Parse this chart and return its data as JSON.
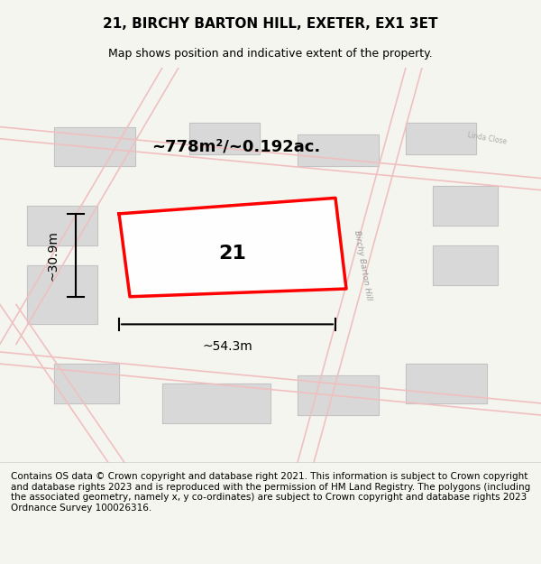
{
  "title": "21, BIRCHY BARTON HILL, EXETER, EX1 3ET",
  "subtitle": "Map shows position and indicative extent of the property.",
  "area_label": "~778m²/~0.192ac.",
  "width_label": "~54.3m",
  "height_label": "~30.9m",
  "property_number": "21",
  "footer": "Contains OS data © Crown copyright and database right 2021. This information is subject to Crown copyright and database rights 2023 and is reproduced with the permission of HM Land Registry. The polygons (including the associated geometry, namely x, y co-ordinates) are subject to Crown copyright and database rights 2023 Ordnance Survey 100026316.",
  "bg_color": "#f5f5f0",
  "map_bg": "#ffffff",
  "road_color": "#f0c0c0",
  "building_color": "#d8d8d8",
  "property_color": "#ff0000",
  "property_fill": "#ffffff",
  "title_fontsize": 11,
  "subtitle_fontsize": 9,
  "footer_fontsize": 7.5
}
